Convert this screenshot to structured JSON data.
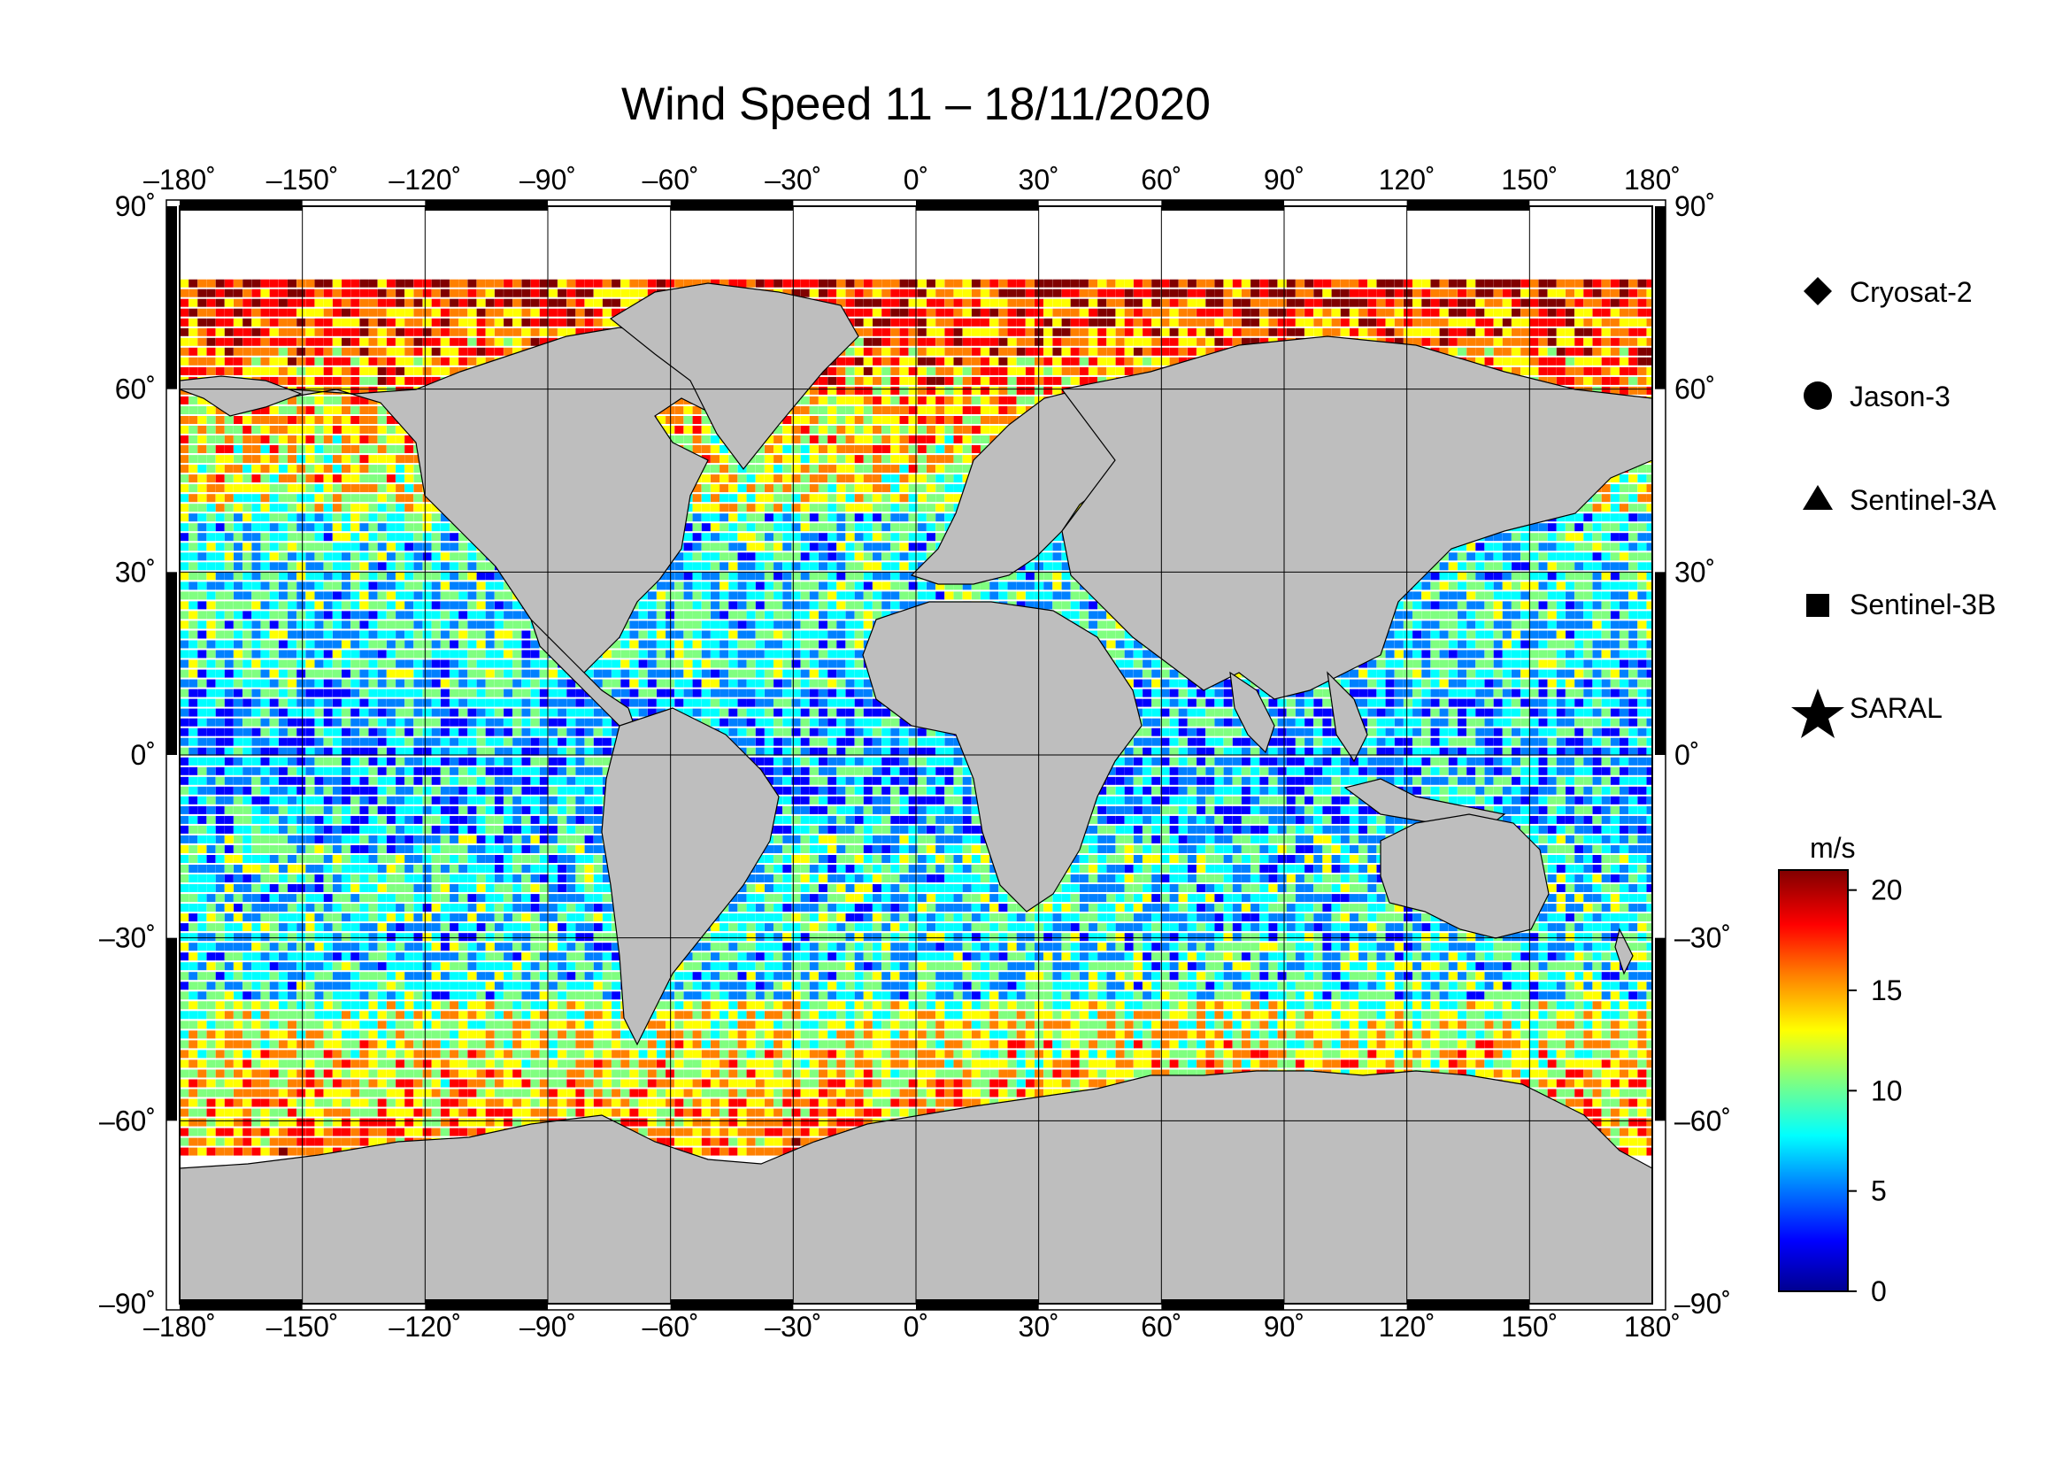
{
  "title": "Wind Speed 11 – 18/11/2020",
  "map": {
    "lon_ticks": [
      "–180˚",
      "–150˚",
      "–120˚",
      "–90˚",
      "–60˚",
      "–30˚",
      "0˚",
      "30˚",
      "60˚",
      "90˚",
      "120˚",
      "150˚",
      "180˚"
    ],
    "lat_ticks": [
      "90˚",
      "60˚",
      "30˚",
      "0˚",
      "–30˚",
      "–60˚",
      "–90˚"
    ],
    "lon_range": [
      -180,
      180
    ],
    "lat_range": [
      -90,
      90
    ],
    "grid": true,
    "land_color": "#bebebe",
    "ice_color": "#ffffff"
  },
  "legend": {
    "items": [
      {
        "label": "Cryosat-2",
        "icon": "diamond-icon"
      },
      {
        "label": "Jason-3",
        "icon": "circle-icon"
      },
      {
        "label": "Sentinel-3A",
        "icon": "triangle-icon"
      },
      {
        "label": "Sentinel-3B",
        "icon": "square-icon"
      },
      {
        "label": "SARAL",
        "icon": "star-icon"
      }
    ]
  },
  "colorbar": {
    "unit": "m/s",
    "ticks": [
      "20",
      "15",
      "10",
      "5",
      "0"
    ],
    "range": [
      0,
      21
    ],
    "colors": [
      "#00008f",
      "#0000ff",
      "#0080ff",
      "#00ffff",
      "#80ff80",
      "#ffff00",
      "#ff8000",
      "#ff0000",
      "#800000"
    ]
  }
}
